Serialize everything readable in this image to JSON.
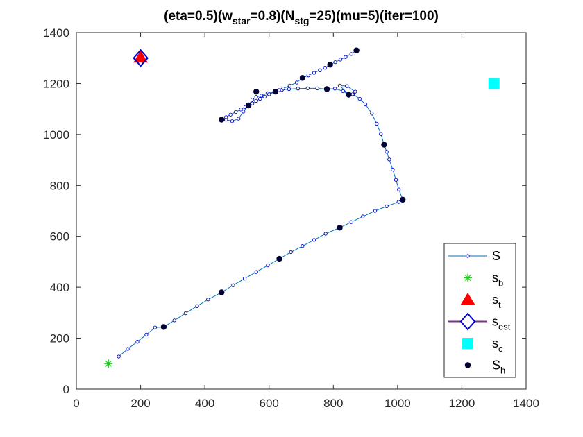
{
  "chart_data": {
    "type": "line",
    "title": {
      "parts": [
        {
          "text": "(eta=0.5)(w",
          "sub": ""
        },
        {
          "text": "",
          "sub": "star"
        },
        {
          "text": "=0.8)(N",
          "sub": ""
        },
        {
          "text": "",
          "sub": "stg"
        },
        {
          "text": "=25)(mu=5)(iter=100)",
          "sub": ""
        }
      ]
    },
    "xlim": [
      0,
      1400
    ],
    "ylim": [
      0,
      1400
    ],
    "xticks": [
      0,
      200,
      400,
      600,
      800,
      1000,
      1200,
      1400
    ],
    "yticks": [
      0,
      200,
      400,
      600,
      800,
      1000,
      1200,
      1400
    ],
    "grid": false,
    "legend_position": "bottom-right",
    "colors": {
      "path": "#0072BD",
      "path_marker_edge": "#0000CC",
      "s_b": "#22CC22",
      "s_t": "#FF0000",
      "s_est": "#0000CC",
      "s_est_legend_line": "#7E2F8E",
      "s_c": "#00FFFF",
      "s_h": "#000033"
    },
    "legend": [
      {
        "key": "S",
        "label": "S",
        "sub": ""
      },
      {
        "key": "s_b",
        "label": "s",
        "sub": "b"
      },
      {
        "key": "s_t",
        "label": "s",
        "sub": "t"
      },
      {
        "key": "s_est",
        "label": "s",
        "sub": "est"
      },
      {
        "key": "s_c",
        "label": "s",
        "sub": "c"
      },
      {
        "key": "s_h",
        "label": "S",
        "sub": "h"
      }
    ],
    "series": [
      {
        "key": "S",
        "points": [
          [
            132,
            128
          ],
          [
            160,
            158
          ],
          [
            190,
            186
          ],
          [
            218,
            214
          ],
          [
            245,
            242
          ],
          [
            272,
            244
          ],
          [
            305,
            270
          ],
          [
            340,
            298
          ],
          [
            376,
            326
          ],
          [
            410,
            352
          ],
          [
            452,
            380
          ],
          [
            488,
            408
          ],
          [
            524,
            434
          ],
          [
            560,
            460
          ],
          [
            596,
            486
          ],
          [
            632,
            512
          ],
          [
            668,
            538
          ],
          [
            704,
            562
          ],
          [
            740,
            586
          ],
          [
            776,
            610
          ],
          [
            820,
            634
          ],
          [
            856,
            656
          ],
          [
            892,
            678
          ],
          [
            930,
            700
          ],
          [
            966,
            718
          ],
          [
            1003,
            735
          ],
          [
            1016,
            744
          ],
          [
            1004,
            784
          ],
          [
            995,
            822
          ],
          [
            985,
            862
          ],
          [
            974,
            902
          ],
          [
            966,
            932
          ],
          [
            958,
            960
          ],
          [
            948,
            1002
          ],
          [
            935,
            1042
          ],
          [
            920,
            1082
          ],
          [
            900,
            1118
          ],
          [
            882,
            1140
          ],
          [
            862,
            1158
          ],
          [
            848,
            1156
          ],
          [
            830,
            1170
          ],
          [
            805,
            1180
          ],
          [
            780,
            1178
          ],
          [
            750,
            1181
          ],
          [
            720,
            1181
          ],
          [
            690,
            1180
          ],
          [
            662,
            1178
          ],
          [
            640,
            1175
          ],
          [
            620,
            1168
          ],
          [
            595,
            1162
          ],
          [
            576,
            1152
          ],
          [
            560,
            1148
          ],
          [
            548,
            1136
          ],
          [
            536,
            1116
          ],
          [
            520,
            1090
          ],
          [
            505,
            1062
          ],
          [
            485,
            1052
          ],
          [
            466,
            1058
          ],
          [
            452,
            1058
          ],
          [
            466,
            1068
          ],
          [
            480,
            1078
          ],
          [
            496,
            1088
          ],
          [
            512,
            1098
          ],
          [
            526,
            1108
          ],
          [
            536,
            1114
          ],
          [
            548,
            1122
          ],
          [
            560,
            1132
          ],
          [
            572,
            1140
          ],
          [
            586,
            1148
          ],
          [
            600,
            1158
          ],
          [
            616,
            1166
          ],
          [
            630,
            1174
          ],
          [
            644,
            1180
          ],
          [
            664,
            1192
          ],
          [
            686,
            1204
          ],
          [
            704,
            1222
          ],
          [
            722,
            1232
          ],
          [
            740,
            1242
          ],
          [
            758,
            1252
          ],
          [
            774,
            1262
          ],
          [
            790,
            1274
          ],
          [
            806,
            1284
          ],
          [
            822,
            1294
          ],
          [
            838,
            1304
          ],
          [
            856,
            1316
          ],
          [
            872,
            1330
          ]
        ],
        "branch": [
          [
            848,
            1156
          ],
          [
            820,
            1192
          ],
          [
            842,
            1190
          ],
          [
            868,
            1168
          ],
          [
            860,
            1158
          ]
        ]
      },
      {
        "key": "S_h",
        "points": [
          [
            272,
            244
          ],
          [
            452,
            380
          ],
          [
            632,
            512
          ],
          [
            820,
            634
          ],
          [
            1016,
            744
          ],
          [
            958,
            960
          ],
          [
            848,
            1156
          ],
          [
            780,
            1178
          ],
          [
            620,
            1168
          ],
          [
            560,
            1168
          ],
          [
            536,
            1114
          ],
          [
            452,
            1058
          ],
          [
            704,
            1222
          ],
          [
            790,
            1274
          ],
          [
            872,
            1330
          ]
        ]
      }
    ],
    "markers": {
      "s_b": [
        100,
        100
      ],
      "s_t": [
        200,
        1300
      ],
      "s_est": [
        200,
        1300
      ],
      "s_c": [
        1300,
        1200
      ]
    }
  }
}
